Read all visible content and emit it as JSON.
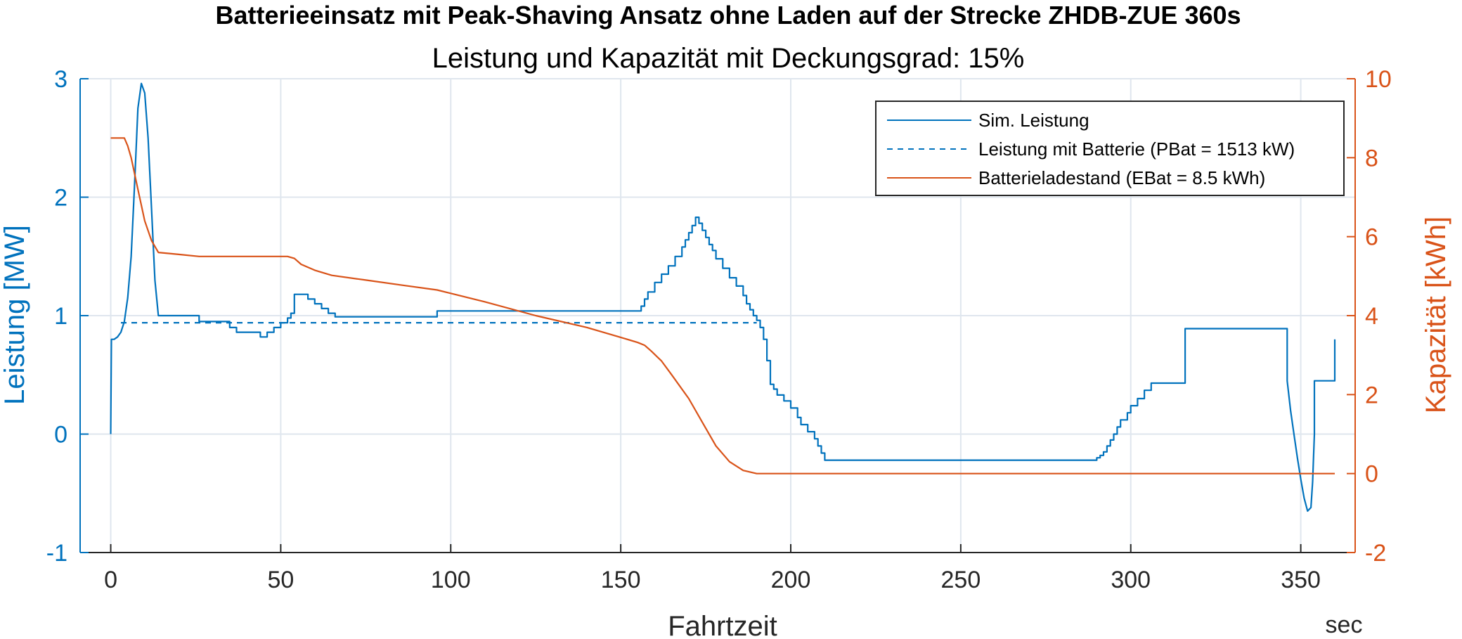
{
  "chart_data": {
    "type": "line",
    "title": "Batterieeinsatz mit Peak-Shaving Ansatz ohne Laden auf der Strecke ZHDB-ZUE 360s",
    "subtitle": "Leistung und Kapazität mit Deckungsgrad: 15%",
    "xlabel": "Fahrtzeit",
    "xunit": "sec",
    "ylabel_left": "Leistung [MW]",
    "ylabel_right": "Kapazität [kWh]",
    "xlim": [
      -9,
      366
    ],
    "ylim_left": [
      -1,
      3
    ],
    "ylim_right": [
      -2,
      10
    ],
    "xticks": [
      0,
      50,
      100,
      150,
      200,
      250,
      300,
      350
    ],
    "yticks_left": [
      -1,
      0,
      1,
      2,
      3
    ],
    "yticks_right": [
      -2,
      0,
      2,
      4,
      6,
      8,
      10
    ],
    "grid": true,
    "legend_position": "top-right",
    "colors": {
      "left_axis": "#0072BD",
      "right_axis": "#D95319",
      "grid": "#DFE6EE"
    },
    "series": [
      {
        "name": "Sim. Leistung",
        "axis": "left",
        "style": "solid",
        "color": "#0072BD",
        "points": [
          [
            0,
            0
          ],
          [
            0.2,
            0.8
          ],
          [
            1,
            0.8
          ],
          [
            2,
            0.82
          ],
          [
            3,
            0.86
          ],
          [
            4,
            0.95
          ],
          [
            5,
            1.15
          ],
          [
            6,
            1.5
          ],
          [
            7,
            2.1
          ],
          [
            8,
            2.75
          ],
          [
            9,
            2.96
          ],
          [
            10,
            2.88
          ],
          [
            11,
            2.5
          ],
          [
            12,
            1.9
          ],
          [
            13,
            1.3
          ],
          [
            14,
            1.0
          ],
          [
            26,
            1.0
          ],
          [
            26,
            0.95
          ],
          [
            35,
            0.95
          ],
          [
            35,
            0.9
          ],
          [
            37,
            0.9
          ],
          [
            37,
            0.86
          ],
          [
            44,
            0.86
          ],
          [
            44,
            0.82
          ],
          [
            46,
            0.82
          ],
          [
            46,
            0.86
          ],
          [
            48,
            0.86
          ],
          [
            48,
            0.9
          ],
          [
            50,
            0.9
          ],
          [
            50,
            0.94
          ],
          [
            52,
            0.94
          ],
          [
            52,
            0.98
          ],
          [
            53,
            0.98
          ],
          [
            53,
            1.02
          ],
          [
            54,
            1.02
          ],
          [
            54,
            1.18
          ],
          [
            58,
            1.18
          ],
          [
            58,
            1.14
          ],
          [
            60,
            1.14
          ],
          [
            60,
            1.1
          ],
          [
            62,
            1.1
          ],
          [
            62,
            1.06
          ],
          [
            64,
            1.06
          ],
          [
            64,
            1.02
          ],
          [
            66,
            1.02
          ],
          [
            66,
            0.99
          ],
          [
            96,
            0.99
          ],
          [
            96,
            1.04
          ],
          [
            156,
            1.04
          ],
          [
            156,
            1.08
          ],
          [
            157,
            1.08
          ],
          [
            157,
            1.14
          ],
          [
            158,
            1.14
          ],
          [
            158,
            1.2
          ],
          [
            160,
            1.2
          ],
          [
            160,
            1.28
          ],
          [
            162,
            1.28
          ],
          [
            162,
            1.35
          ],
          [
            164,
            1.35
          ],
          [
            164,
            1.42
          ],
          [
            166,
            1.42
          ],
          [
            166,
            1.5
          ],
          [
            168,
            1.5
          ],
          [
            168,
            1.58
          ],
          [
            169,
            1.58
          ],
          [
            169,
            1.64
          ],
          [
            170,
            1.64
          ],
          [
            170,
            1.7
          ],
          [
            171,
            1.7
          ],
          [
            171,
            1.76
          ],
          [
            172,
            1.76
          ],
          [
            172,
            1.83
          ],
          [
            173,
            1.83
          ],
          [
            173,
            1.78
          ],
          [
            174,
            1.78
          ],
          [
            174,
            1.72
          ],
          [
            175,
            1.72
          ],
          [
            175,
            1.66
          ],
          [
            176,
            1.66
          ],
          [
            176,
            1.6
          ],
          [
            177,
            1.6
          ],
          [
            177,
            1.55
          ],
          [
            178,
            1.55
          ],
          [
            178,
            1.48
          ],
          [
            180,
            1.48
          ],
          [
            180,
            1.4
          ],
          [
            182,
            1.4
          ],
          [
            182,
            1.32
          ],
          [
            184,
            1.32
          ],
          [
            184,
            1.25
          ],
          [
            186,
            1.25
          ],
          [
            186,
            1.17
          ],
          [
            187,
            1.17
          ],
          [
            187,
            1.1
          ],
          [
            188,
            1.1
          ],
          [
            188,
            1.05
          ],
          [
            189,
            1.05
          ],
          [
            189,
            1.0
          ],
          [
            190,
            1.0
          ],
          [
            190,
            0.96
          ],
          [
            191,
            0.96
          ],
          [
            191,
            0.9
          ],
          [
            192,
            0.9
          ],
          [
            192,
            0.8
          ],
          [
            193,
            0.8
          ],
          [
            193,
            0.62
          ],
          [
            194,
            0.62
          ],
          [
            194,
            0.42
          ],
          [
            195,
            0.42
          ],
          [
            195,
            0.38
          ],
          [
            196,
            0.38
          ],
          [
            196,
            0.33
          ],
          [
            198,
            0.33
          ],
          [
            198,
            0.28
          ],
          [
            200,
            0.28
          ],
          [
            200,
            0.22
          ],
          [
            202,
            0.22
          ],
          [
            202,
            0.14
          ],
          [
            203,
            0.14
          ],
          [
            203,
            0.08
          ],
          [
            205,
            0.08
          ],
          [
            205,
            0.02
          ],
          [
            207,
            0.02
          ],
          [
            207,
            -0.04
          ],
          [
            208,
            -0.04
          ],
          [
            208,
            -0.1
          ],
          [
            209,
            -0.1
          ],
          [
            209,
            -0.16
          ],
          [
            210,
            -0.16
          ],
          [
            210,
            -0.22
          ],
          [
            290,
            -0.22
          ],
          [
            290,
            -0.2
          ],
          [
            291,
            -0.2
          ],
          [
            291,
            -0.18
          ],
          [
            292,
            -0.18
          ],
          [
            292,
            -0.15
          ],
          [
            293,
            -0.15
          ],
          [
            293,
            -0.1
          ],
          [
            294,
            -0.1
          ],
          [
            294,
            -0.05
          ],
          [
            295,
            -0.05
          ],
          [
            295,
            0.0
          ],
          [
            296,
            0.0
          ],
          [
            296,
            0.06
          ],
          [
            297,
            0.06
          ],
          [
            297,
            0.12
          ],
          [
            299,
            0.12
          ],
          [
            299,
            0.18
          ],
          [
            300,
            0.18
          ],
          [
            300,
            0.24
          ],
          [
            302,
            0.24
          ],
          [
            302,
            0.3
          ],
          [
            304,
            0.3
          ],
          [
            304,
            0.37
          ],
          [
            306,
            0.37
          ],
          [
            306,
            0.43
          ],
          [
            316,
            0.43
          ],
          [
            316,
            0.89
          ],
          [
            346,
            0.89
          ],
          [
            346,
            0.45
          ],
          [
            347,
            0.2
          ],
          [
            348,
            0.0
          ],
          [
            349,
            -0.2
          ],
          [
            350,
            -0.38
          ],
          [
            351,
            -0.54
          ],
          [
            352,
            -0.65
          ],
          [
            353,
            -0.62
          ],
          [
            353.5,
            -0.4
          ],
          [
            354,
            0.0
          ],
          [
            354,
            0.45
          ],
          [
            360,
            0.45
          ],
          [
            360,
            0.8
          ]
        ]
      },
      {
        "name": "Leistung mit Batterie (PBat = 1513 kW)",
        "axis": "left",
        "style": "dashed",
        "color": "#0072BD",
        "points": [
          [
            3,
            0.94
          ],
          [
            190,
            0.94
          ]
        ]
      },
      {
        "name": "Batterieladestand (EBat = 8.5 kWh)",
        "axis": "right",
        "style": "solid",
        "color": "#D95319",
        "points": [
          [
            0,
            8.5
          ],
          [
            4,
            8.5
          ],
          [
            5,
            8.3
          ],
          [
            6,
            8.0
          ],
          [
            8,
            7.2
          ],
          [
            10,
            6.4
          ],
          [
            12,
            5.9
          ],
          [
            14,
            5.6
          ],
          [
            20,
            5.55
          ],
          [
            26,
            5.5
          ],
          [
            40,
            5.5
          ],
          [
            52,
            5.5
          ],
          [
            54,
            5.45
          ],
          [
            56,
            5.3
          ],
          [
            60,
            5.15
          ],
          [
            65,
            5.02
          ],
          [
            75,
            4.9
          ],
          [
            85,
            4.78
          ],
          [
            96,
            4.65
          ],
          [
            110,
            4.35
          ],
          [
            125,
            4.0
          ],
          [
            140,
            3.7
          ],
          [
            150,
            3.45
          ],
          [
            155,
            3.32
          ],
          [
            157,
            3.25
          ],
          [
            159,
            3.1
          ],
          [
            162,
            2.85
          ],
          [
            165,
            2.5
          ],
          [
            170,
            1.9
          ],
          [
            174,
            1.3
          ],
          [
            178,
            0.7
          ],
          [
            182,
            0.3
          ],
          [
            186,
            0.08
          ],
          [
            190,
            0.0
          ],
          [
            360,
            0.0
          ]
        ]
      }
    ]
  }
}
